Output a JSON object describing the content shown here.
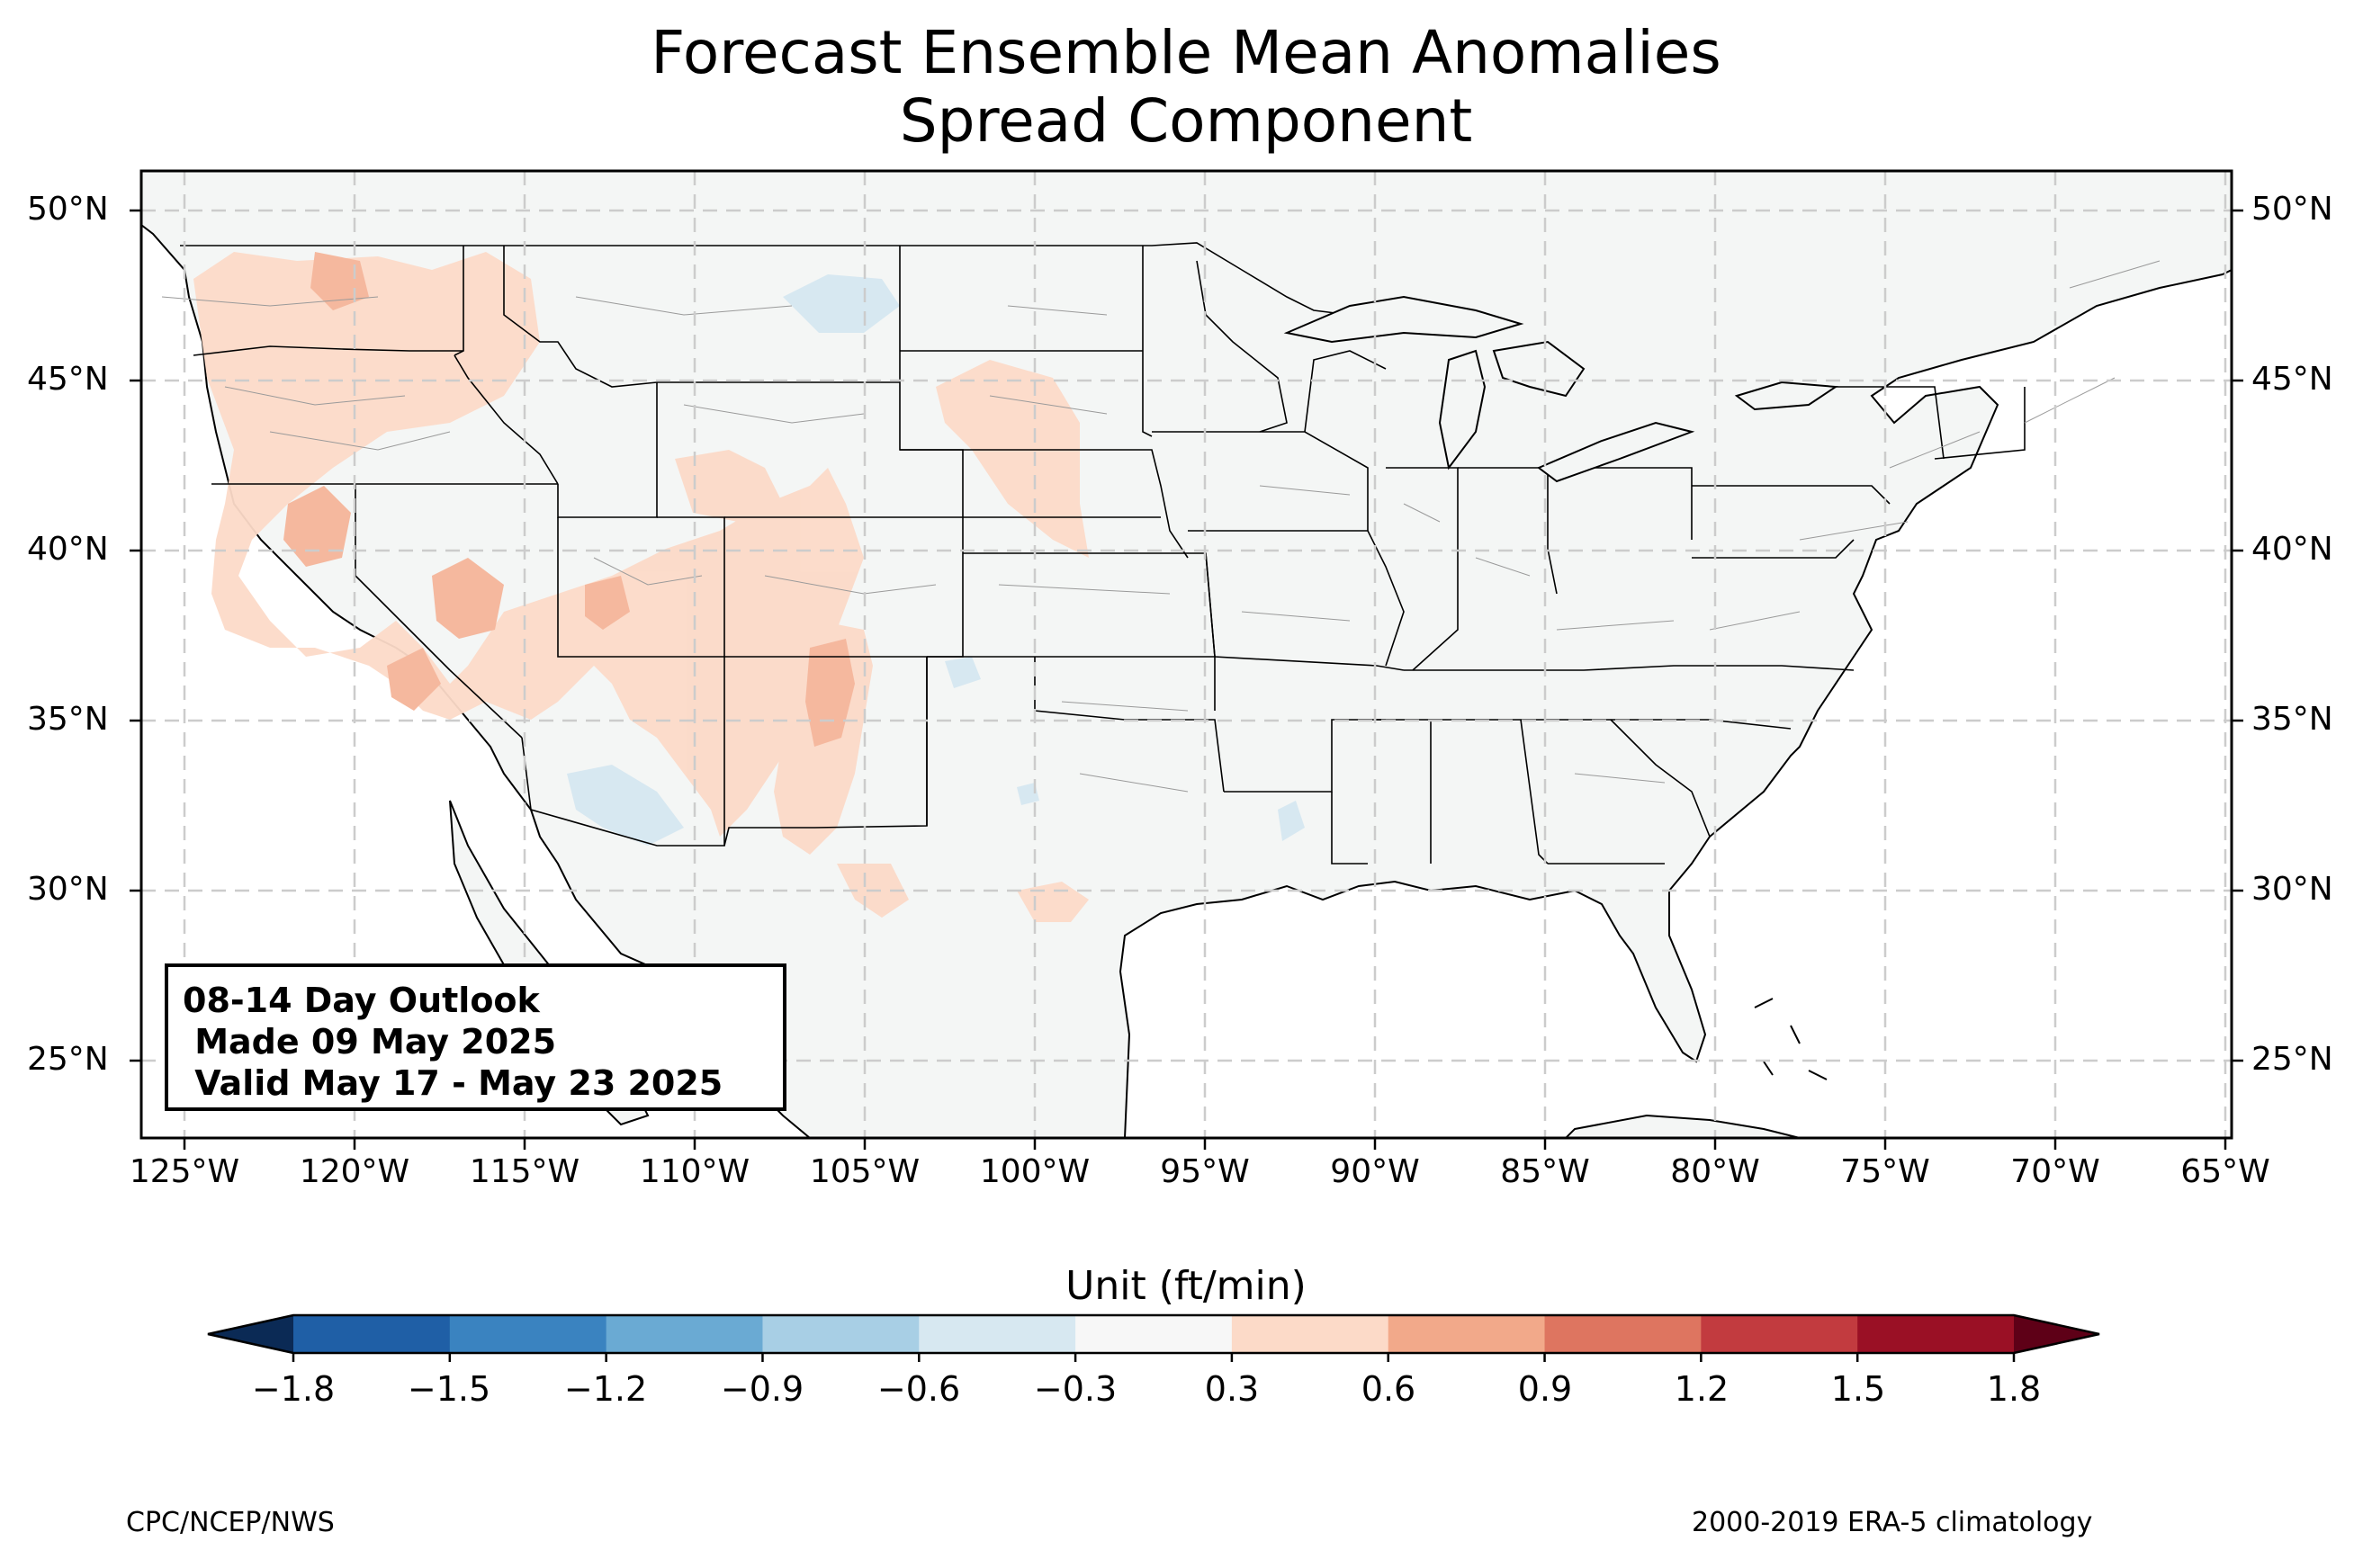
{
  "title": [
    "Forecast Ensemble Mean Anomalies",
    "Spread Component"
  ],
  "info_box": {
    "line1": "08-14 Day Outlook",
    "line2": " Made 09 May 2025",
    "line3": " Valid May 17 - May 23 2025"
  },
  "lat_labels": [
    "50°N",
    "45°N",
    "40°N",
    "35°N",
    "30°N",
    "25°N"
  ],
  "lon_labels": [
    "125°W",
    "120°W",
    "115°W",
    "110°W",
    "105°W",
    "100°W",
    "95°W",
    "90°W",
    "85°W",
    "80°W",
    "75°W",
    "70°W",
    "65°W"
  ],
  "map_extent": {
    "lon": [
      -126.3,
      -64.8
    ],
    "lat": [
      22.7,
      51.1
    ]
  },
  "colorbar": {
    "title": "Unit (ft/min)",
    "ticks": [
      "−1.8",
      "−1.5",
      "−1.2",
      "−0.9",
      "−0.6",
      "−0.3",
      "0.3",
      "0.6",
      "0.9",
      "1.2",
      "1.5",
      "1.8"
    ],
    "colors": [
      "#1f5fa6",
      "#3a83c0",
      "#6aaad3",
      "#a8cfe5",
      "#d7e8f1",
      "#f7f7f7",
      "#fcdac8",
      "#f2a98a",
      "#de7560",
      "#c23b3f",
      "#9a1025"
    ],
    "extend_low": "#0b2a55",
    "extend_high": "#5e0017"
  },
  "colors": {
    "land": "#f4f6f5",
    "positive_anomaly": "#fcdac8",
    "positive_strong": "#f5b89e",
    "negative_anomaly": "#d7e8f1",
    "gridline": "#cccccc"
  },
  "footer": {
    "left": "CPC/NCEP/NWS",
    "right": "2000-2019 ERA-5 climatology"
  }
}
